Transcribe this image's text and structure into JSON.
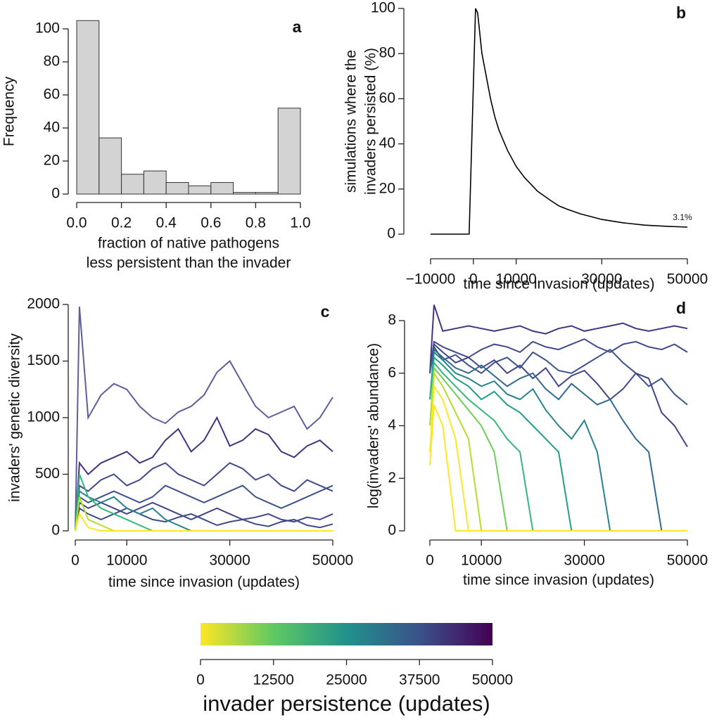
{
  "chart_data": [
    {
      "type": "histogram",
      "label": "a",
      "ylabel": "Frequency",
      "xlabel": [
        "fraction of native pathogens",
        "less persistent than the invader"
      ],
      "bins": [
        0,
        0.1,
        0.2,
        0.3,
        0.4,
        0.5,
        0.6,
        0.7,
        0.8,
        0.9,
        1.0
      ],
      "values": [
        105,
        34,
        12,
        14,
        7,
        5,
        7,
        1,
        1,
        52
      ],
      "color": "#d3d3d3",
      "xlim": [
        0,
        1
      ],
      "ylim": [
        0,
        100
      ],
      "xticks": [
        {
          "value": 0,
          "label": "0.0"
        },
        0.2,
        0.4,
        0.6,
        0.8,
        {
          "value": 1,
          "label": "1.0"
        }
      ],
      "yticks": [
        0,
        20,
        40,
        60,
        80,
        100
      ]
    },
    {
      "type": "line",
      "label": "b",
      "ylabel": [
        "simulations where the",
        "invaders persisted (%)"
      ],
      "xlabel": [
        "time since invasion (updates)"
      ],
      "annotation": "3.1%",
      "color": "#000000",
      "x": [
        -10000,
        -1000,
        500,
        1000,
        2000,
        3000,
        4000,
        5000,
        6000,
        8000,
        10000,
        12000,
        15000,
        18000,
        20000,
        22000,
        25000,
        30000,
        35000,
        40000,
        45000,
        50000
      ],
      "values": [
        0,
        0,
        100,
        98,
        80,
        70,
        60,
        52,
        46,
        37,
        30,
        25,
        19,
        15,
        12.5,
        11,
        9,
        6.5,
        5,
        4,
        3.5,
        3.1
      ],
      "xlim": [
        -10000,
        50000
      ],
      "ylim": [
        0,
        100
      ],
      "xticks": [
        {
          "value": -10000,
          "label": "−10000"
        },
        0,
        10000,
        30000,
        50000
      ],
      "yticks": [
        0,
        20,
        40,
        60,
        80,
        100
      ]
    },
    {
      "type": "line",
      "label": "c",
      "ylabel": [
        "invaders' genetic diversity"
      ],
      "xlabel": [
        "time since invasion (updates)"
      ],
      "x": [
        0,
        800,
        2500,
        5000,
        7500,
        10000,
        12500,
        15000,
        17500,
        20000,
        22500,
        25000,
        27500,
        30000,
        32500,
        35000,
        37500,
        40000,
        42500,
        45000,
        47500,
        50000
      ],
      "series": [
        {
          "color": "#5d5f9b",
          "values": [
            0,
            1980,
            1000,
            1200,
            1300,
            1250,
            1100,
            1000,
            950,
            1050,
            1100,
            1200,
            1400,
            1500,
            1300,
            1100,
            1000,
            1050,
            1100,
            900,
            1000,
            1180
          ]
        },
        {
          "color": "#46337e",
          "values": [
            0,
            600,
            500,
            600,
            650,
            700,
            600,
            650,
            800,
            900,
            700,
            800,
            1000,
            750,
            800,
            900,
            850,
            700,
            650,
            750,
            800,
            700
          ]
        },
        {
          "color": "#3e4a89",
          "values": [
            0,
            400,
            350,
            450,
            500,
            400,
            450,
            550,
            600,
            500,
            450,
            400,
            500,
            600,
            550,
            450,
            500,
            400,
            350,
            450,
            400,
            350
          ]
        },
        {
          "color": "#3b528b",
          "values": [
            0,
            300,
            250,
            300,
            350,
            300,
            250,
            300,
            400,
            350,
            300,
            250,
            300,
            350,
            400,
            300,
            250,
            200,
            250,
            300,
            350,
            400
          ]
        },
        {
          "color": "#414487",
          "values": [
            0,
            250,
            200,
            250,
            200,
            150,
            200,
            250,
            200,
            150,
            100,
            150,
            200,
            150,
            100,
            120,
            150,
            100,
            80,
            120,
            100,
            150
          ]
        },
        {
          "color": "#3e4a89",
          "values": [
            0,
            200,
            150,
            100,
            150,
            200,
            150,
            100,
            80,
            120,
            150,
            100,
            50,
            80,
            100,
            60,
            40,
            80,
            100,
            50,
            30,
            60
          ]
        },
        {
          "color": "#26828e",
          "values": [
            0,
            350,
            300,
            250,
            300,
            200,
            150,
            200,
            100,
            50,
            0,
            0,
            0,
            0,
            0,
            0,
            0,
            0,
            0,
            0,
            0,
            0
          ]
        },
        {
          "color": "#35b779",
          "values": [
            0,
            500,
            300,
            200,
            150,
            100,
            50,
            0,
            0,
            0,
            0,
            0,
            0,
            0,
            0,
            0,
            0,
            0,
            0,
            0,
            0,
            0
          ]
        },
        {
          "color": "#b5de2b",
          "values": [
            0,
            300,
            100,
            50,
            0,
            0,
            0,
            0,
            0,
            0,
            0,
            0,
            0,
            0,
            0,
            0,
            0,
            0,
            0,
            0,
            0,
            0
          ]
        },
        {
          "color": "#fde725",
          "values": [
            0,
            150,
            30,
            0,
            0,
            0,
            0,
            0,
            0,
            0,
            0,
            0,
            0,
            0,
            0,
            0,
            0,
            0,
            0,
            0,
            0,
            0
          ]
        }
      ],
      "xlim": [
        0,
        50000
      ],
      "ylim": [
        0,
        2000
      ],
      "xticks": [
        0,
        10000,
        30000,
        50000
      ],
      "yticks": [
        0,
        500,
        1000,
        1500,
        2000
      ]
    },
    {
      "type": "line",
      "label": "d",
      "ylabel": [
        "log(invaders' abundance)"
      ],
      "xlabel": [
        "time since invasion (updates)"
      ],
      "x": [
        0,
        800,
        2500,
        5000,
        7500,
        10000,
        12500,
        15000,
        17500,
        20000,
        22500,
        25000,
        27500,
        30000,
        32500,
        35000,
        37500,
        40000,
        42500,
        45000,
        47500,
        50000
      ],
      "series": [
        {
          "color": "#46337e",
          "values": [
            6,
            8.6,
            7.6,
            7.7,
            7.8,
            7.7,
            7.6,
            7.7,
            7.8,
            7.6,
            7.5,
            7.7,
            7.8,
            7.6,
            7.7,
            7.8,
            7.9,
            7.7,
            7.6,
            7.7,
            7.8,
            7.7
          ]
        },
        {
          "color": "#3e4a89",
          "values": [
            6,
            7.2,
            7.0,
            6.8,
            6.6,
            6.9,
            7.1,
            7.0,
            6.8,
            7.2,
            7.0,
            6.9,
            7.1,
            7.3,
            7.0,
            6.8,
            7.1,
            7.2,
            7.0,
            6.9,
            7.1,
            6.8
          ]
        },
        {
          "color": "#3b528b",
          "values": [
            6,
            7.0,
            6.5,
            6.7,
            6.3,
            6.0,
            6.4,
            6.6,
            6.2,
            6.8,
            6.5,
            6.1,
            6.0,
            6.3,
            6.6,
            6.9,
            6.4,
            6.0,
            5.5,
            5.8,
            5.2,
            4.8
          ]
        },
        {
          "color": "#414487",
          "values": [
            6,
            7.1,
            6.8,
            6.4,
            6.6,
            6.2,
            6.5,
            6.0,
            6.3,
            5.8,
            6.2,
            5.5,
            5.9,
            6.1,
            5.6,
            5.0,
            5.4,
            6.0,
            5.8,
            4.5,
            4.0,
            3.2
          ]
        },
        {
          "color": "#31688e",
          "values": [
            6,
            6.9,
            6.6,
            6.2,
            6.0,
            6.3,
            5.9,
            5.5,
            5.8,
            6.0,
            5.4,
            5.0,
            5.6,
            5.2,
            4.8,
            5.0,
            4.2,
            3.5,
            3.0,
            0,
            0,
            0
          ]
        },
        {
          "color": "#26828e",
          "values": [
            5,
            6.8,
            6.5,
            6.0,
            5.8,
            5.5,
            5.7,
            5.2,
            5.0,
            5.4,
            4.6,
            4.0,
            3.5,
            4.2,
            3.0,
            0,
            0,
            0,
            0,
            0,
            0,
            0
          ]
        },
        {
          "color": "#1f9e89",
          "values": [
            5,
            6.6,
            6.3,
            5.8,
            5.5,
            5.0,
            5.3,
            4.8,
            4.5,
            4.0,
            3.5,
            3.0,
            0,
            0,
            0,
            0,
            0,
            0,
            0,
            0,
            0,
            0
          ]
        },
        {
          "color": "#35b779",
          "values": [
            5,
            6.4,
            6.0,
            5.5,
            5.0,
            4.6,
            4.2,
            3.5,
            3.0,
            0,
            0,
            0,
            0,
            0,
            0,
            0,
            0,
            0,
            0,
            0,
            0,
            0
          ]
        },
        {
          "color": "#6ece58",
          "values": [
            4,
            6.2,
            5.8,
            5.2,
            4.6,
            4.0,
            3.0,
            0,
            0,
            0,
            0,
            0,
            0,
            0,
            0,
            0,
            0,
            0,
            0,
            0,
            0,
            0
          ]
        },
        {
          "color": "#b5de2b",
          "values": [
            4,
            6.0,
            5.5,
            4.5,
            3.5,
            0,
            0,
            0,
            0,
            0,
            0,
            0,
            0,
            0,
            0,
            0,
            0,
            0,
            0,
            0,
            0,
            0
          ]
        },
        {
          "color": "#fde725",
          "values": [
            3,
            5.5,
            5.0,
            3.5,
            0,
            0,
            0,
            0,
            0,
            0,
            0,
            0,
            0,
            0,
            0,
            0,
            0,
            0,
            0,
            0,
            0,
            0
          ]
        },
        {
          "color": "#fde725",
          "values": [
            2.5,
            4.8,
            4.0,
            0,
            0,
            0,
            0,
            0,
            0,
            0,
            0,
            0,
            0,
            0,
            0,
            0,
            0,
            0,
            0,
            0,
            0,
            0
          ]
        }
      ],
      "xlim": [
        0,
        50000
      ],
      "ylim": [
        0,
        8
      ],
      "xticks": [
        0,
        10000,
        30000,
        50000
      ],
      "yticks": [
        0,
        2,
        4,
        6,
        8
      ]
    },
    {
      "type": "colorbar",
      "xlabel": [
        "invader persistence (updates)"
      ],
      "colors": [
        "#fde725",
        "#5ec962",
        "#21918c",
        "#3b528b",
        "#440154"
      ],
      "xlim": [
        0,
        50000
      ],
      "xticks": [
        0,
        12500,
        25000,
        37500,
        50000
      ]
    }
  ]
}
